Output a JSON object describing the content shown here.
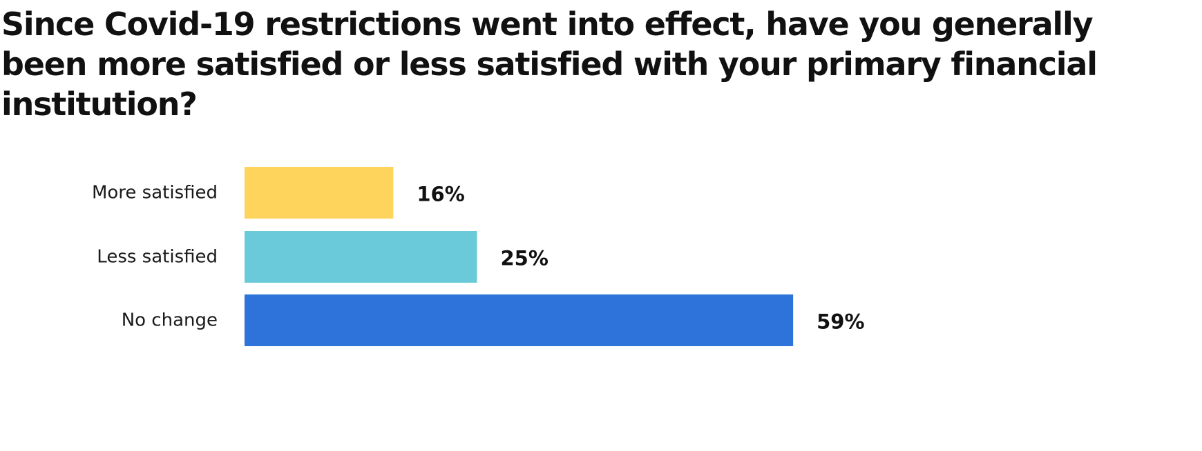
{
  "chart_data": {
    "type": "bar",
    "orientation": "horizontal",
    "title": "Since Covid-19 restrictions went into effect, have you generally been more satisfied or less satisfied with your primary financial institution?",
    "categories": [
      "More satisfied",
      "Less satisfied",
      "No change"
    ],
    "values": [
      16,
      25,
      59
    ],
    "value_labels": [
      "16%",
      "25%",
      "59%"
    ],
    "colors": [
      "#FED45C",
      "#6BCAD9",
      "#2E73DA"
    ],
    "xlim": [
      0,
      100
    ],
    "grid": false,
    "legend": false
  }
}
